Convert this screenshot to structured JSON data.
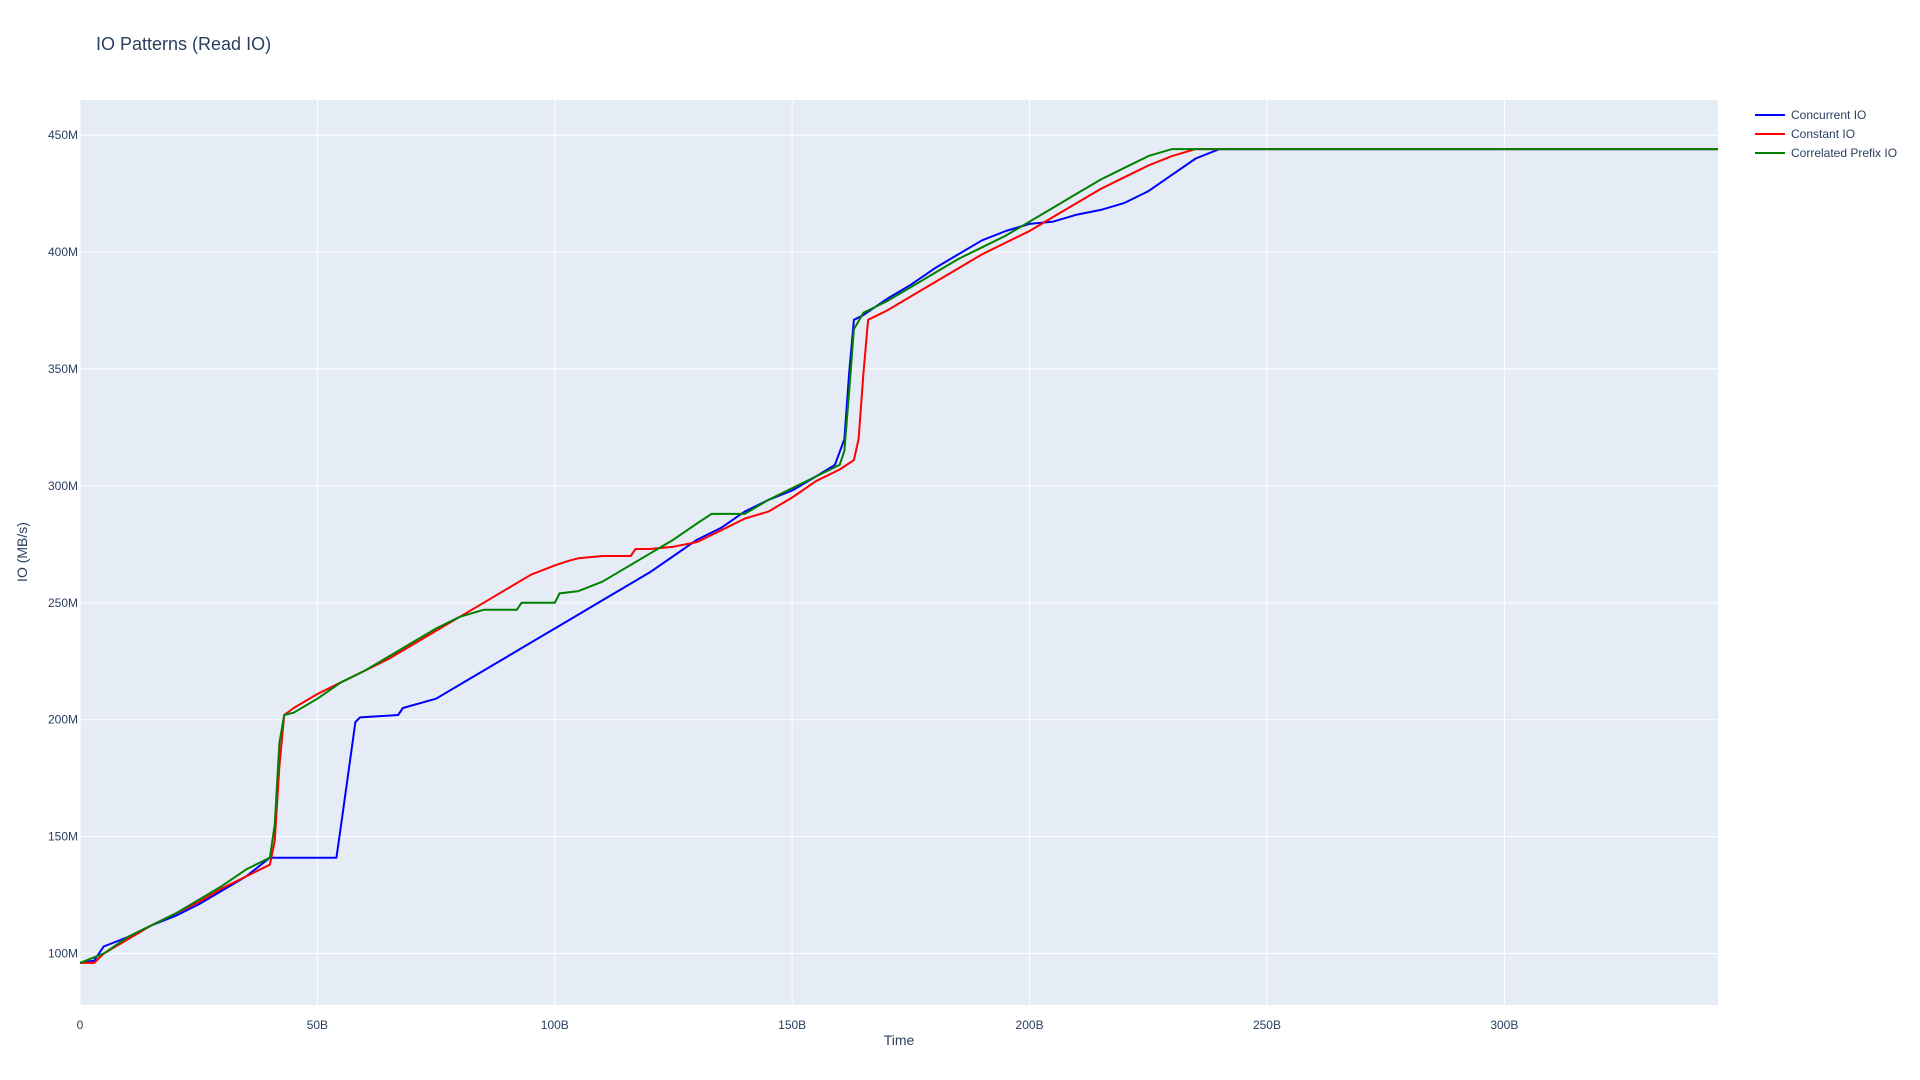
{
  "chart_data": {
    "type": "line",
    "title": "IO Patterns (Read IO)",
    "xlabel": "Time",
    "ylabel": "IO (MB/s)",
    "xlim": [
      0,
      345000000000
    ],
    "ylim": [
      78000000,
      465000000
    ],
    "xticks": [
      {
        "value": 0,
        "label": "0"
      },
      {
        "value": 50000000000,
        "label": "50B"
      },
      {
        "value": 100000000000,
        "label": "100B"
      },
      {
        "value": 150000000000,
        "label": "150B"
      },
      {
        "value": 200000000000,
        "label": "200B"
      },
      {
        "value": 250000000000,
        "label": "250B"
      },
      {
        "value": 300000000000,
        "label": "300B"
      }
    ],
    "yticks": [
      {
        "value": 100000000,
        "label": "100M"
      },
      {
        "value": 150000000,
        "label": "150M"
      },
      {
        "value": 200000000,
        "label": "200M"
      },
      {
        "value": 250000000,
        "label": "250M"
      },
      {
        "value": 300000000,
        "label": "300M"
      },
      {
        "value": 350000000,
        "label": "350M"
      },
      {
        "value": 400000000,
        "label": "400M"
      },
      {
        "value": 450000000,
        "label": "450M"
      }
    ],
    "grid": true,
    "legend_position": "top-right",
    "background_color": "#E5ECF6",
    "series": [
      {
        "name": "Concurrent IO",
        "color": "#0000FF",
        "x": [
          0,
          3000000000,
          5000000000,
          10000000000,
          15000000000,
          20000000000,
          25000000000,
          30000000000,
          35000000000,
          40000000000,
          54000000000,
          55000000000,
          58000000000,
          59000000000,
          67000000000,
          68000000000,
          75000000000,
          80000000000,
          85000000000,
          90000000000,
          95000000000,
          100000000000,
          105000000000,
          110000000000,
          115000000000,
          120000000000,
          125000000000,
          130000000000,
          135000000000,
          140000000000,
          145000000000,
          150000000000,
          155000000000,
          159000000000,
          161000000000,
          162000000000,
          163000000000,
          165000000000,
          170000000000,
          175000000000,
          180000000000,
          185000000000,
          190000000000,
          195000000000,
          200000000000,
          205000000000,
          210000000000,
          215000000000,
          220000000000,
          225000000000,
          230000000000,
          235000000000,
          240000000000,
          250000000000,
          345000000000
        ],
        "y": [
          96000000,
          97000000,
          103000000,
          107000000,
          112000000,
          116000000,
          121000000,
          127000000,
          133000000,
          141000000,
          141000000,
          155000000,
          199000000,
          201000000,
          202000000,
          205000000,
          209000000,
          215000000,
          221000000,
          227000000,
          233000000,
          239000000,
          245000000,
          251000000,
          257000000,
          263000000,
          270000000,
          277000000,
          282000000,
          289000000,
          294000000,
          298000000,
          304000000,
          309000000,
          320000000,
          348000000,
          371000000,
          373000000,
          380000000,
          386000000,
          393000000,
          399000000,
          405000000,
          409000000,
          412000000,
          413000000,
          416000000,
          418000000,
          421000000,
          426000000,
          433000000,
          440000000,
          444000000,
          444000000,
          444000000
        ]
      },
      {
        "name": "Constant IO",
        "color": "#FF0000",
        "x": [
          0,
          3000000000,
          5000000000,
          10000000000,
          15000000000,
          20000000000,
          25000000000,
          30000000000,
          35000000000,
          40000000000,
          41000000000,
          42000000000,
          43000000000,
          45000000000,
          50000000000,
          55000000000,
          60000000000,
          65000000000,
          70000000000,
          75000000000,
          80000000000,
          85000000000,
          90000000000,
          95000000000,
          100000000000,
          103000000000,
          105000000000,
          110000000000,
          116000000000,
          117000000000,
          120000000000,
          125000000000,
          130000000000,
          135000000000,
          140000000000,
          145000000000,
          150000000000,
          155000000000,
          160000000000,
          163000000000,
          164000000000,
          165000000000,
          166000000000,
          170000000000,
          175000000000,
          180000000000,
          185000000000,
          190000000000,
          195000000000,
          200000000000,
          205000000000,
          210000000000,
          215000000000,
          220000000000,
          225000000000,
          230000000000,
          235000000000,
          345000000000
        ],
        "y": [
          96000000,
          96000000,
          100000000,
          106000000,
          112000000,
          117000000,
          122000000,
          128000000,
          133000000,
          138000000,
          148000000,
          180000000,
          202000000,
          205000000,
          211000000,
          216000000,
          221000000,
          226000000,
          232000000,
          238000000,
          244000000,
          250000000,
          256000000,
          262000000,
          266000000,
          268000000,
          269000000,
          270000000,
          270000000,
          273000000,
          273000000,
          274000000,
          276000000,
          281000000,
          286000000,
          289000000,
          295000000,
          302000000,
          307000000,
          311000000,
          320000000,
          348000000,
          371000000,
          375000000,
          381000000,
          387000000,
          393000000,
          399000000,
          404000000,
          409000000,
          415000000,
          421000000,
          427000000,
          432000000,
          437000000,
          441000000,
          444000000,
          444000000
        ]
      },
      {
        "name": "Correlated Prefix IO",
        "color": "#008000",
        "x": [
          0,
          5000000000,
          10000000000,
          15000000000,
          20000000000,
          25000000000,
          30000000000,
          35000000000,
          40000000000,
          41000000000,
          42000000000,
          43000000000,
          45000000000,
          50000000000,
          55000000000,
          60000000000,
          65000000000,
          70000000000,
          75000000000,
          80000000000,
          85000000000,
          92000000000,
          93000000000,
          100000000000,
          101000000000,
          105000000000,
          110000000000,
          115000000000,
          120000000000,
          125000000000,
          130000000000,
          133000000000,
          140000000000,
          145000000000,
          150000000000,
          155000000000,
          160000000000,
          161000000000,
          162000000000,
          163000000000,
          165000000000,
          170000000000,
          175000000000,
          180000000000,
          185000000000,
          190000000000,
          195000000000,
          200000000000,
          205000000000,
          210000000000,
          215000000000,
          220000000000,
          225000000000,
          230000000000,
          235000000000,
          345000000000
        ],
        "y": [
          96000000,
          100000000,
          107000000,
          112000000,
          117000000,
          123000000,
          129000000,
          136000000,
          141000000,
          155000000,
          190000000,
          202000000,
          203000000,
          209000000,
          216000000,
          221000000,
          227000000,
          233000000,
          239000000,
          244000000,
          247000000,
          247000000,
          250000000,
          250000000,
          254000000,
          255000000,
          259000000,
          265000000,
          271000000,
          277000000,
          284000000,
          288000000,
          288000000,
          294000000,
          299000000,
          304000000,
          309000000,
          315000000,
          340000000,
          367000000,
          374000000,
          379000000,
          385000000,
          391000000,
          397000000,
          402000000,
          407000000,
          413000000,
          419000000,
          425000000,
          431000000,
          436000000,
          441000000,
          444000000,
          444000000,
          444000000
        ]
      }
    ]
  }
}
